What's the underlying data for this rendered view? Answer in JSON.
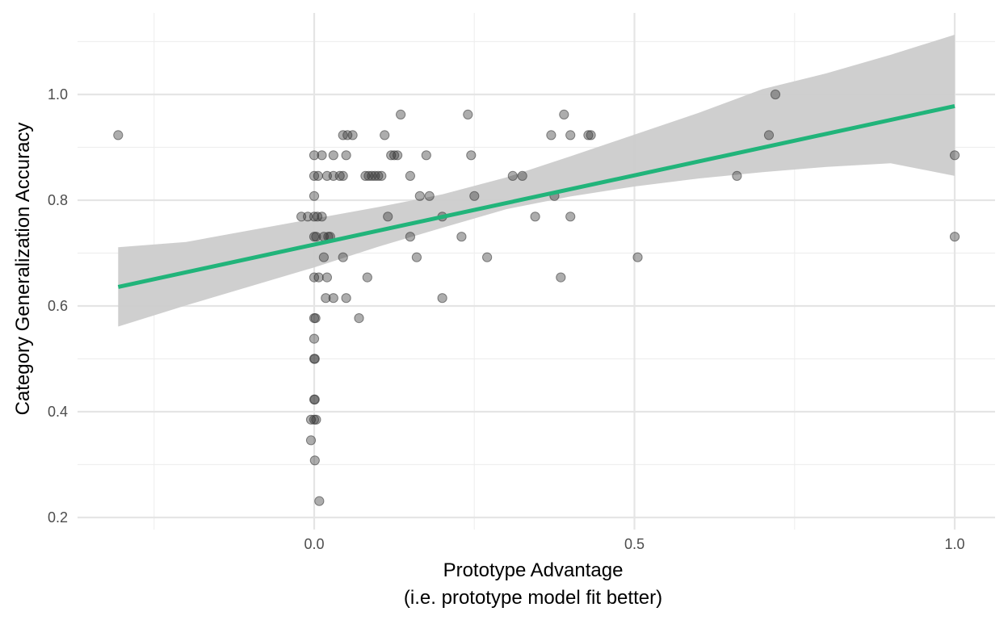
{
  "chart_data": {
    "type": "scatter",
    "title": "",
    "xlabel": "Prototype Advantage",
    "xlabel_sub": "(i.e. prototype model fit better)",
    "ylabel": "Category Generalization Accuracy",
    "xlim": [
      -0.37,
      1.03
    ],
    "ylim": [
      0.2,
      1.12
    ],
    "x_ticks": [
      0.0,
      0.5,
      1.0
    ],
    "x_tick_labels": [
      "0.0",
      "0.5",
      "1.0"
    ],
    "x_minor_ticks": [
      -0.25,
      0.25,
      0.75
    ],
    "y_ticks": [
      0.2,
      0.4,
      0.6,
      0.8,
      1.0
    ],
    "y_tick_labels": [
      "0.2",
      "0.4",
      "0.6",
      "0.8",
      "1.0"
    ],
    "y_minor_ticks": [
      0.3,
      0.5,
      0.7,
      0.9,
      1.1
    ],
    "grid": true,
    "legend": "none",
    "colors": {
      "points": "#333333",
      "fit_line": "#21b47a",
      "confidence_band": "#cccccc",
      "grid_major": "#e5e5e5",
      "grid_minor": "#efefef"
    },
    "fit_line": {
      "x": [
        -0.306,
        1.0
      ],
      "y": [
        0.636,
        0.978
      ]
    },
    "confidence_band": {
      "x": [
        -0.306,
        -0.2,
        0.0,
        0.1,
        0.2,
        0.3,
        0.4,
        0.5,
        0.6,
        0.7,
        0.8,
        0.9,
        1.0
      ],
      "lower": [
        0.561,
        0.601,
        0.673,
        0.712,
        0.748,
        0.783,
        0.807,
        0.826,
        0.841,
        0.853,
        0.863,
        0.87,
        0.846
      ],
      "upper": [
        0.711,
        0.721,
        0.765,
        0.787,
        0.811,
        0.843,
        0.883,
        0.924,
        0.965,
        1.01,
        1.04,
        1.075,
        1.113
      ]
    },
    "points": [
      {
        "x": -0.306,
        "y": 0.923
      },
      {
        "x": -0.02,
        "y": 0.769
      },
      {
        "x": -0.01,
        "y": 0.769
      },
      {
        "x": 0.0,
        "y": 0.769
      },
      {
        "x": 0.005,
        "y": 0.769
      },
      {
        "x": 0.012,
        "y": 0.769
      },
      {
        "x": 0.0,
        "y": 0.885
      },
      {
        "x": 0.012,
        "y": 0.885
      },
      {
        "x": 0.03,
        "y": 0.885
      },
      {
        "x": 0.05,
        "y": 0.885
      },
      {
        "x": 0.0,
        "y": 0.846
      },
      {
        "x": 0.006,
        "y": 0.846
      },
      {
        "x": 0.02,
        "y": 0.846
      },
      {
        "x": 0.03,
        "y": 0.846
      },
      {
        "x": 0.04,
        "y": 0.846
      },
      {
        "x": 0.045,
        "y": 0.846
      },
      {
        "x": 0.0,
        "y": 0.808
      },
      {
        "x": 0.0,
        "y": 0.731
      },
      {
        "x": 0.003,
        "y": 0.731
      },
      {
        "x": 0.015,
        "y": 0.731
      },
      {
        "x": 0.022,
        "y": 0.731
      },
      {
        "x": 0.025,
        "y": 0.731
      },
      {
        "x": 0.015,
        "y": 0.692
      },
      {
        "x": 0.045,
        "y": 0.692
      },
      {
        "x": 0.0,
        "y": 0.654
      },
      {
        "x": 0.007,
        "y": 0.654
      },
      {
        "x": 0.02,
        "y": 0.654
      },
      {
        "x": 0.018,
        "y": 0.615
      },
      {
        "x": 0.03,
        "y": 0.615
      },
      {
        "x": 0.05,
        "y": 0.615
      },
      {
        "x": 0.0,
        "y": 0.577
      },
      {
        "x": 0.002,
        "y": 0.577
      },
      {
        "x": 0.07,
        "y": 0.577
      },
      {
        "x": 0.0,
        "y": 0.538
      },
      {
        "x": 0.0,
        "y": 0.5
      },
      {
        "x": 0.001,
        "y": 0.5
      },
      {
        "x": 0.0,
        "y": 0.423
      },
      {
        "x": 0.001,
        "y": 0.423
      },
      {
        "x": -0.005,
        "y": 0.385
      },
      {
        "x": 0.0,
        "y": 0.385
      },
      {
        "x": 0.003,
        "y": 0.385
      },
      {
        "x": -0.005,
        "y": 0.346
      },
      {
        "x": 0.001,
        "y": 0.308
      },
      {
        "x": 0.008,
        "y": 0.231
      },
      {
        "x": 0.045,
        "y": 0.923
      },
      {
        "x": 0.052,
        "y": 0.923
      },
      {
        "x": 0.06,
        "y": 0.923
      },
      {
        "x": 0.08,
        "y": 0.846
      },
      {
        "x": 0.085,
        "y": 0.846
      },
      {
        "x": 0.09,
        "y": 0.846
      },
      {
        "x": 0.095,
        "y": 0.846
      },
      {
        "x": 0.1,
        "y": 0.846
      },
      {
        "x": 0.105,
        "y": 0.846
      },
      {
        "x": 0.083,
        "y": 0.654
      },
      {
        "x": 0.11,
        "y": 0.923
      },
      {
        "x": 0.12,
        "y": 0.885
      },
      {
        "x": 0.125,
        "y": 0.885
      },
      {
        "x": 0.13,
        "y": 0.885
      },
      {
        "x": 0.135,
        "y": 0.962
      },
      {
        "x": 0.115,
        "y": 0.769
      },
      {
        "x": 0.15,
        "y": 0.846
      },
      {
        "x": 0.15,
        "y": 0.731
      },
      {
        "x": 0.16,
        "y": 0.692
      },
      {
        "x": 0.165,
        "y": 0.808
      },
      {
        "x": 0.18,
        "y": 0.808
      },
      {
        "x": 0.175,
        "y": 0.885
      },
      {
        "x": 0.2,
        "y": 0.769
      },
      {
        "x": 0.2,
        "y": 0.615
      },
      {
        "x": 0.23,
        "y": 0.731
      },
      {
        "x": 0.24,
        "y": 0.962
      },
      {
        "x": 0.245,
        "y": 0.885
      },
      {
        "x": 0.25,
        "y": 0.808
      },
      {
        "x": 0.27,
        "y": 0.692
      },
      {
        "x": 0.31,
        "y": 0.846
      },
      {
        "x": 0.325,
        "y": 0.846
      },
      {
        "x": 0.345,
        "y": 0.769
      },
      {
        "x": 0.37,
        "y": 0.923
      },
      {
        "x": 0.375,
        "y": 0.808
      },
      {
        "x": 0.385,
        "y": 0.654
      },
      {
        "x": 0.39,
        "y": 0.962
      },
      {
        "x": 0.4,
        "y": 0.923
      },
      {
        "x": 0.4,
        "y": 0.769
      },
      {
        "x": 0.428,
        "y": 0.923
      },
      {
        "x": 0.432,
        "y": 0.923
      },
      {
        "x": 0.505,
        "y": 0.692
      },
      {
        "x": 0.66,
        "y": 0.846
      },
      {
        "x": 0.71,
        "y": 0.923
      },
      {
        "x": 0.72,
        "y": 1.0
      },
      {
        "x": 1.0,
        "y": 0.885
      },
      {
        "x": 1.0,
        "y": 0.731
      }
    ]
  }
}
